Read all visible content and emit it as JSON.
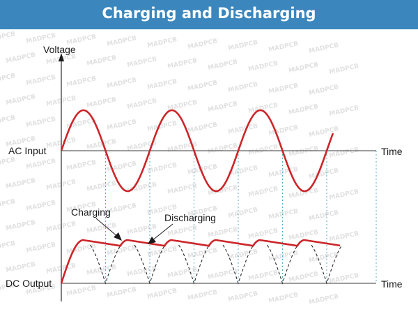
{
  "header": {
    "title": "Charging and Discharging"
  },
  "axes": {
    "y_label": "Voltage",
    "ac_row_label": "AC Input",
    "dc_row_label": "DC Output",
    "time_label_top": "Time",
    "time_label_bottom": "Time"
  },
  "annotations": {
    "charging": "Charging",
    "discharging": "Discharging"
  },
  "watermark": {
    "text": "MADPCB"
  },
  "colors": {
    "banner": "#3a86bd",
    "wave": "#cc2529",
    "axis": "#3a3a3a",
    "guide": "#5aa9c9"
  }
}
